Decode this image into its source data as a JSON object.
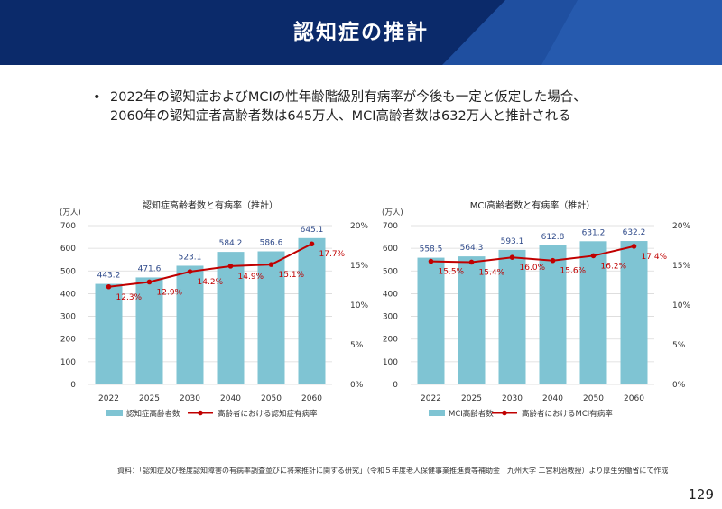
{
  "header": {
    "title": "認知症の推計",
    "bg_color": "#0b2a6a",
    "accent_color": "#1f4fa0"
  },
  "bullet": {
    "marker": "•",
    "line1": "2022年の認知症およびMCIの性年齢階級別有病率が今後も一定と仮定した場合、",
    "line2": "2060年の認知症者高齢者数は645万人、MCI高齢者数は632万人と推計される"
  },
  "chart_data": [
    {
      "type": "bar",
      "title": "認知症高齢者数と有病率（推計）",
      "categories": [
        "2022",
        "2025",
        "2030",
        "2040",
        "2050",
        "2060"
      ],
      "ylabel": "(万人)",
      "ylim": [
        0,
        700
      ],
      "yticks": [
        "0",
        "100",
        "200",
        "300",
        "400",
        "500",
        "600",
        "700"
      ],
      "y2lim": [
        0,
        20
      ],
      "y2ticks": [
        "0%",
        "5%",
        "10%",
        "15%",
        "20%"
      ],
      "grid": true,
      "legend_position": "bottom",
      "series": [
        {
          "name": "認知症高齢者数",
          "kind": "bar",
          "color": "#7fc4d3",
          "values": [
            443.2,
            471.6,
            523.1,
            584.2,
            586.6,
            645.1
          ],
          "labels": [
            "443.2",
            "471.6",
            "523.1",
            "584.2",
            "586.6",
            "645.1"
          ]
        },
        {
          "name": "高齢者における認知症有病率",
          "kind": "line",
          "axis": "right",
          "color": "#c00000",
          "values": [
            12.3,
            12.9,
            14.2,
            14.9,
            15.1,
            17.7
          ],
          "labels": [
            "12.3%",
            "12.9%",
            "14.2%",
            "14.9%",
            "15.1%",
            "17.7%"
          ]
        }
      ]
    },
    {
      "type": "bar",
      "title": "MCI高齢者数と有病率（推計）",
      "categories": [
        "2022",
        "2025",
        "2030",
        "2040",
        "2050",
        "2060"
      ],
      "ylabel": "(万人)",
      "ylim": [
        0,
        700
      ],
      "yticks": [
        "0",
        "100",
        "200",
        "300",
        "400",
        "500",
        "600",
        "700"
      ],
      "y2lim": [
        0,
        20
      ],
      "y2ticks": [
        "0%",
        "5%",
        "10%",
        "15%",
        "20%"
      ],
      "grid": true,
      "legend_position": "bottom",
      "series": [
        {
          "name": "MCI高齢者数",
          "kind": "bar",
          "color": "#7fc4d3",
          "values": [
            558.5,
            564.3,
            593.1,
            612.8,
            631.2,
            632.2
          ],
          "labels": [
            "558.5",
            "564.3",
            "593.1",
            "612.8",
            "631.2",
            "632.2"
          ]
        },
        {
          "name": "高齢者におけるMCI有病率",
          "kind": "line",
          "axis": "right",
          "color": "#c00000",
          "values": [
            15.5,
            15.4,
            16.0,
            15.6,
            16.2,
            17.4
          ],
          "labels": [
            "15.5%",
            "15.4%",
            "16.0%",
            "15.6%",
            "16.2%",
            "17.4%"
          ]
        }
      ]
    }
  ],
  "footer": {
    "source": "資料：「認知症及び軽度認知障害の有病率調査並びに将来推計に関する研究」（令和５年度老人保健事業推進費等補助金　九州大学 二宮利治教授）より厚生労働省にて作成",
    "page_number": "129"
  }
}
